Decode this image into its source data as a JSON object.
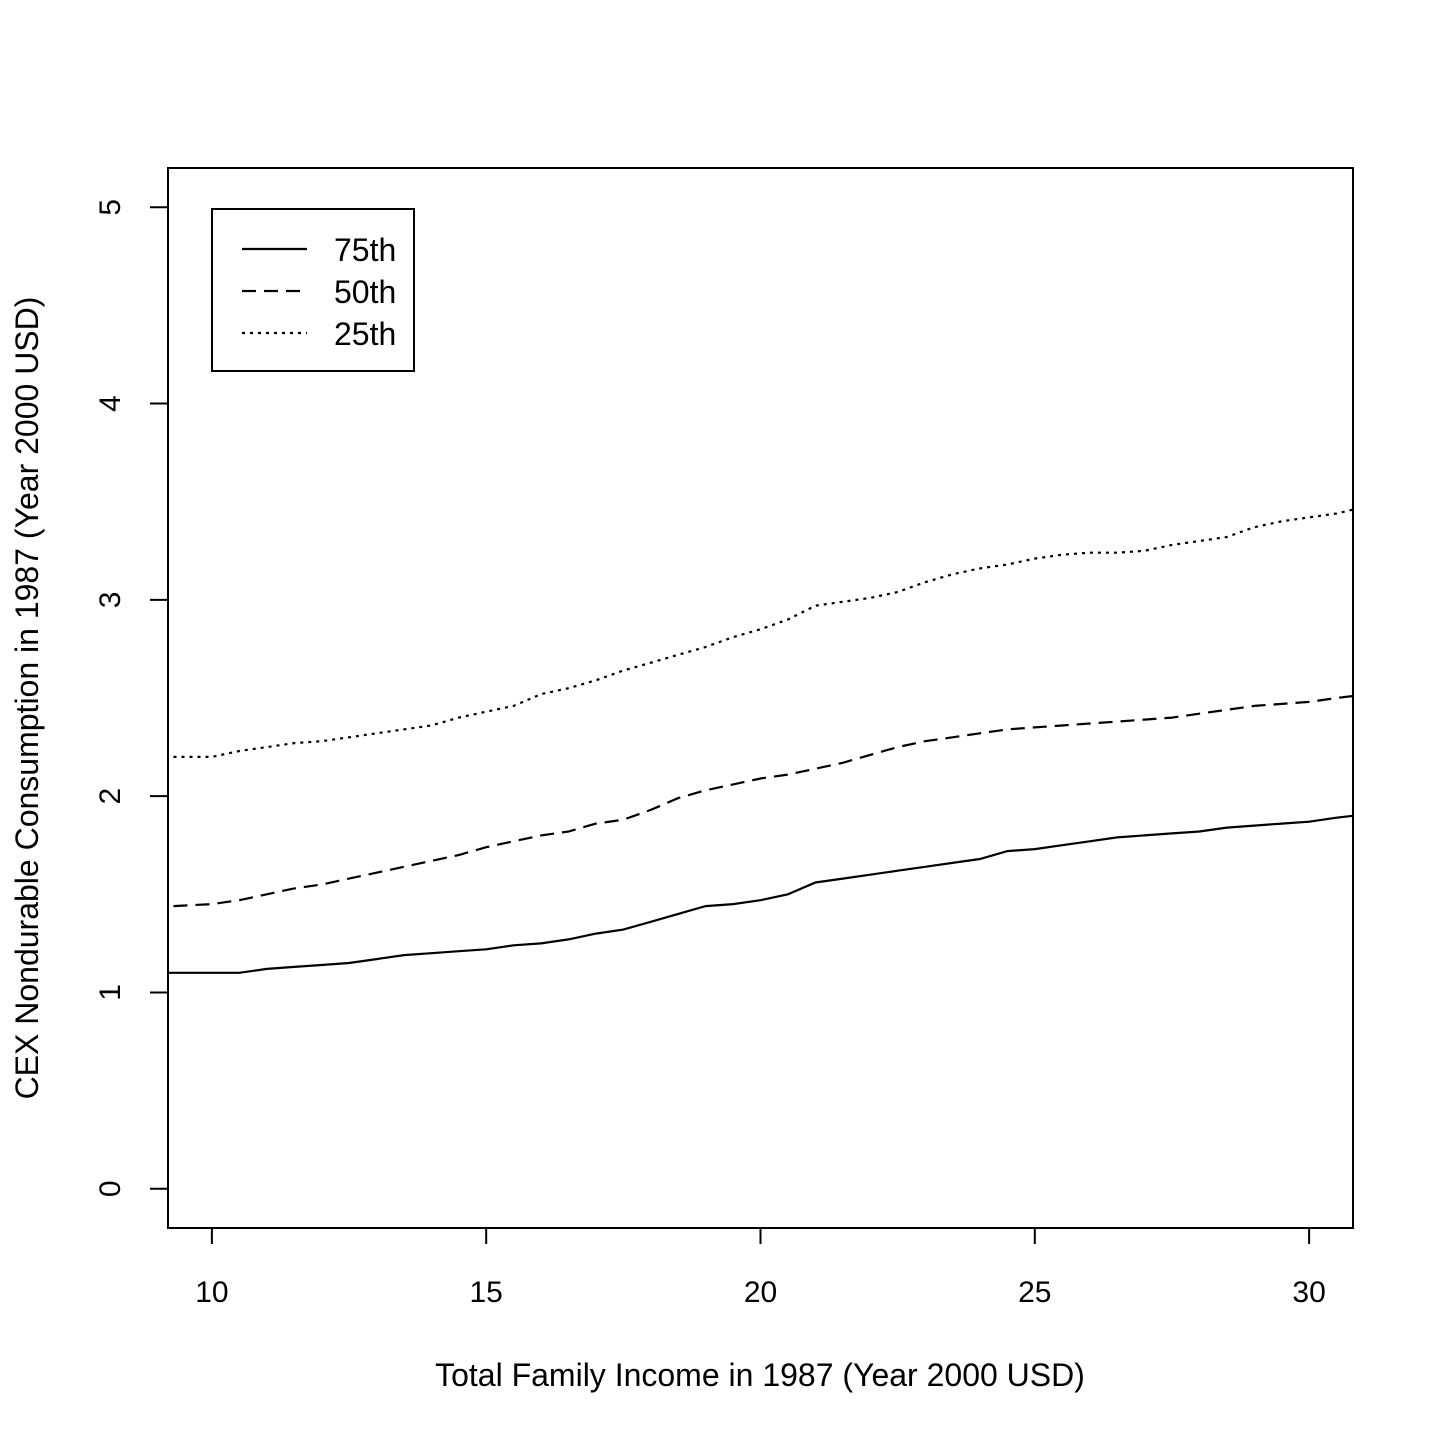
{
  "chart_data": {
    "type": "line",
    "title": "",
    "xlabel": "Total Family Income in 1987 (Year 2000 USD)",
    "ylabel": "CEX Nondurable Consumption in 1987 (Year 2000 USD)",
    "xlim": [
      9.2,
      30.8
    ],
    "ylim": [
      -0.2,
      5.2
    ],
    "xticks": [
      10,
      15,
      20,
      25,
      30
    ],
    "yticks": [
      0,
      1,
      2,
      3,
      4,
      5
    ],
    "grid": false,
    "legend_position": "top-left",
    "series": [
      {
        "name": "75th",
        "line_style": "solid",
        "points": [
          [
            9.2,
            1.1
          ],
          [
            10.5,
            1.1
          ],
          [
            11,
            1.12
          ],
          [
            11.5,
            1.13
          ],
          [
            12,
            1.14
          ],
          [
            12.5,
            1.15
          ],
          [
            13,
            1.17
          ],
          [
            13.5,
            1.19
          ],
          [
            14,
            1.2
          ],
          [
            14.5,
            1.21
          ],
          [
            15,
            1.22
          ],
          [
            15.5,
            1.24
          ],
          [
            16,
            1.25
          ],
          [
            16.5,
            1.27
          ],
          [
            17,
            1.3
          ],
          [
            17.5,
            1.32
          ],
          [
            18,
            1.36
          ],
          [
            18.5,
            1.4
          ],
          [
            19,
            1.44
          ],
          [
            19.5,
            1.45
          ],
          [
            20,
            1.47
          ],
          [
            20.5,
            1.5
          ],
          [
            21,
            1.56
          ],
          [
            21.5,
            1.58
          ],
          [
            22,
            1.6
          ],
          [
            22.5,
            1.62
          ],
          [
            23,
            1.64
          ],
          [
            23.5,
            1.66
          ],
          [
            24,
            1.68
          ],
          [
            24.5,
            1.72
          ],
          [
            25,
            1.73
          ],
          [
            25.5,
            1.75
          ],
          [
            26,
            1.77
          ],
          [
            26.5,
            1.79
          ],
          [
            27,
            1.8
          ],
          [
            27.5,
            1.81
          ],
          [
            28,
            1.82
          ],
          [
            28.5,
            1.84
          ],
          [
            29,
            1.85
          ],
          [
            29.5,
            1.86
          ],
          [
            30,
            1.87
          ],
          [
            30.5,
            1.89
          ],
          [
            30.8,
            1.9
          ]
        ]
      },
      {
        "name": "50th",
        "line_style": "dashed",
        "points": [
          [
            9.3,
            1.44
          ],
          [
            10,
            1.45
          ],
          [
            10.5,
            1.47
          ],
          [
            11,
            1.5
          ],
          [
            11.5,
            1.53
          ],
          [
            12,
            1.55
          ],
          [
            12.5,
            1.58
          ],
          [
            13,
            1.61
          ],
          [
            13.5,
            1.64
          ],
          [
            14,
            1.67
          ],
          [
            14.5,
            1.7
          ],
          [
            15,
            1.74
          ],
          [
            15.5,
            1.77
          ],
          [
            16,
            1.8
          ],
          [
            16.5,
            1.82
          ],
          [
            17,
            1.86
          ],
          [
            17.5,
            1.88
          ],
          [
            18,
            1.93
          ],
          [
            18.5,
            1.99
          ],
          [
            19,
            2.03
          ],
          [
            19.5,
            2.06
          ],
          [
            20,
            2.09
          ],
          [
            20.5,
            2.11
          ],
          [
            21,
            2.14
          ],
          [
            21.5,
            2.17
          ],
          [
            22,
            2.21
          ],
          [
            22.5,
            2.25
          ],
          [
            23,
            2.28
          ],
          [
            23.5,
            2.3
          ],
          [
            24,
            2.32
          ],
          [
            24.5,
            2.34
          ],
          [
            25,
            2.35
          ],
          [
            25.5,
            2.36
          ],
          [
            26,
            2.37
          ],
          [
            26.5,
            2.38
          ],
          [
            27,
            2.39
          ],
          [
            27.5,
            2.4
          ],
          [
            28,
            2.42
          ],
          [
            28.5,
            2.44
          ],
          [
            29,
            2.46
          ],
          [
            29.5,
            2.47
          ],
          [
            30,
            2.48
          ],
          [
            30.5,
            2.5
          ],
          [
            30.8,
            2.51
          ]
        ]
      },
      {
        "name": "25th",
        "line_style": "dotted",
        "points": [
          [
            9.3,
            2.2
          ],
          [
            10,
            2.2
          ],
          [
            10.5,
            2.23
          ],
          [
            11,
            2.25
          ],
          [
            11.5,
            2.27
          ],
          [
            12,
            2.28
          ],
          [
            12.5,
            2.3
          ],
          [
            13,
            2.32
          ],
          [
            13.5,
            2.34
          ],
          [
            14,
            2.36
          ],
          [
            14.5,
            2.4
          ],
          [
            15,
            2.43
          ],
          [
            15.5,
            2.46
          ],
          [
            16,
            2.52
          ],
          [
            16.5,
            2.55
          ],
          [
            17,
            2.59
          ],
          [
            17.5,
            2.64
          ],
          [
            18,
            2.68
          ],
          [
            18.5,
            2.72
          ],
          [
            19,
            2.76
          ],
          [
            19.5,
            2.81
          ],
          [
            20,
            2.85
          ],
          [
            20.5,
            2.9
          ],
          [
            21,
            2.97
          ],
          [
            21.5,
            2.99
          ],
          [
            22,
            3.01
          ],
          [
            22.5,
            3.04
          ],
          [
            23,
            3.09
          ],
          [
            23.5,
            3.13
          ],
          [
            24,
            3.16
          ],
          [
            24.5,
            3.18
          ],
          [
            25,
            3.21
          ],
          [
            25.5,
            3.23
          ],
          [
            26,
            3.24
          ],
          [
            26.5,
            3.24
          ],
          [
            27,
            3.25
          ],
          [
            27.5,
            3.28
          ],
          [
            28,
            3.3
          ],
          [
            28.5,
            3.32
          ],
          [
            29,
            3.37
          ],
          [
            29.5,
            3.4
          ],
          [
            30,
            3.42
          ],
          [
            30.5,
            3.44
          ],
          [
            30.8,
            3.46
          ]
        ]
      }
    ]
  }
}
